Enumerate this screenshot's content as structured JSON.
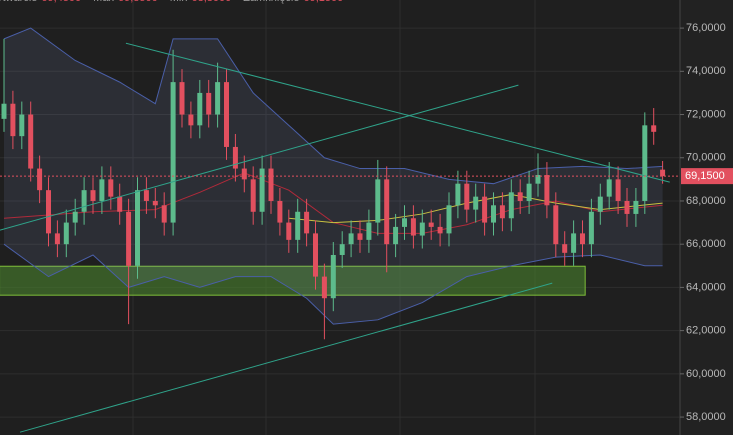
{
  "chart_data": {
    "type": "candlestick",
    "header": [
      {
        "label": "Otwarcie",
        "value": "69,4500"
      },
      {
        "label": "Max",
        "value": "69,8500"
      },
      {
        "label": "Min",
        "value": "68,8000"
      },
      {
        "label": "Zamknięcie",
        "value": "69,1500"
      }
    ],
    "ylim": [
      57.17,
      77.3
    ],
    "yticks": [
      {
        "value": 58,
        "label": "58,0000"
      },
      {
        "value": 60,
        "label": "60,0000"
      },
      {
        "value": 62,
        "label": "62,0000"
      },
      {
        "value": 64,
        "label": "64,0000"
      },
      {
        "value": 66,
        "label": "66,0000"
      },
      {
        "value": 68,
        "label": "68,0000"
      },
      {
        "value": 70,
        "label": "70,0000"
      },
      {
        "value": 72,
        "label": "72,0000"
      },
      {
        "value": 74,
        "label": "74,0000"
      },
      {
        "value": 76,
        "label": "76,0000"
      }
    ],
    "grid": true,
    "up_color": "#5dbb8c",
    "down_color": "#e2505f",
    "open": [
      71.8,
      72.5,
      71.0,
      72.0,
      69.5,
      68.5,
      66.5,
      66.0,
      67.0,
      67.5,
      68.5,
      68.0,
      69.0,
      68.2,
      67.5,
      65.0,
      68.5,
      68.0,
      67.8,
      67.0,
      73.5,
      72.0,
      71.5,
      73.0,
      72.0,
      73.5,
      70.5,
      69.5,
      69.0,
      67.5,
      69.5,
      68.0,
      67.0,
      66.2,
      67.5,
      66.5,
      64.5,
      63.5,
      65.5,
      66.0,
      66.5,
      66.2,
      67.0,
      69.0,
      66.0,
      66.8,
      67.2,
      66.4,
      67.0,
      66.8,
      66.5,
      67.8,
      68.8,
      67.6,
      68.2,
      67.0,
      67.8,
      67.2,
      68.4,
      68.0,
      68.8,
      69.2,
      67.8,
      66.0,
      65.6,
      66.5,
      66.0,
      67.5,
      68.2,
      69.0,
      68.0,
      67.4,
      68.0,
      71.5,
      69.45
    ],
    "high": [
      75.5,
      73.1,
      72.6,
      72.6,
      70.1,
      69.1,
      67.1,
      67.6,
      68.1,
      69.1,
      69.1,
      69.6,
      69.6,
      68.8,
      68.1,
      69.1,
      69.1,
      68.6,
      68.4,
      75.0,
      74.1,
      72.6,
      73.6,
      73.6,
      74.4,
      74.1,
      71.1,
      70.1,
      69.6,
      70.1,
      70.1,
      68.6,
      67.6,
      68.1,
      68.1,
      67.1,
      65.1,
      66.1,
      66.6,
      67.1,
      67.1,
      67.6,
      69.9,
      69.6,
      67.4,
      67.8,
      67.8,
      67.6,
      67.6,
      67.4,
      68.4,
      69.4,
      69.4,
      68.8,
      68.8,
      68.4,
      68.4,
      69.0,
      69.0,
      69.4,
      70.2,
      69.8,
      68.4,
      66.6,
      67.1,
      67.1,
      68.1,
      68.8,
      69.8,
      69.6,
      68.6,
      68.6,
      72.1,
      72.3,
      69.85
    ],
    "low": [
      71.2,
      70.4,
      70.4,
      68.9,
      67.9,
      65.9,
      65.4,
      65.4,
      66.4,
      66.9,
      67.4,
      67.4,
      67.6,
      66.9,
      62.3,
      64.4,
      67.4,
      67.2,
      66.4,
      66.4,
      71.4,
      70.9,
      70.9,
      71.4,
      71.4,
      69.9,
      68.9,
      68.4,
      66.9,
      66.9,
      67.4,
      66.4,
      65.6,
      65.6,
      65.9,
      63.9,
      61.6,
      62.9,
      64.9,
      65.4,
      65.6,
      65.6,
      66.4,
      64.7,
      65.4,
      66.2,
      65.8,
      65.8,
      66.2,
      65.9,
      65.9,
      67.2,
      67.0,
      67.0,
      66.4,
      66.4,
      66.6,
      66.6,
      67.4,
      67.4,
      68.2,
      67.2,
      65.4,
      65.0,
      65.0,
      65.4,
      65.4,
      66.9,
      67.6,
      67.4,
      66.8,
      66.8,
      67.4,
      70.6,
      68.8
    ],
    "close": [
      72.5,
      71.0,
      72.0,
      69.5,
      68.5,
      66.5,
      66.0,
      67.0,
      67.5,
      68.5,
      68.0,
      69.0,
      68.2,
      67.5,
      65.0,
      68.5,
      68.0,
      67.8,
      67.0,
      73.5,
      72.0,
      71.5,
      73.0,
      72.0,
      73.5,
      70.5,
      69.5,
      69.0,
      67.5,
      69.5,
      68.0,
      67.0,
      66.2,
      67.5,
      66.5,
      64.5,
      63.5,
      65.5,
      66.0,
      66.5,
      66.2,
      67.0,
      69.0,
      66.0,
      66.8,
      67.2,
      66.4,
      67.0,
      66.8,
      66.5,
      67.8,
      68.8,
      67.6,
      68.2,
      67.0,
      67.8,
      67.2,
      68.4,
      68.0,
      68.8,
      69.2,
      67.8,
      66.0,
      65.6,
      66.5,
      66.0,
      67.5,
      68.2,
      69.0,
      68.0,
      67.4,
      68.0,
      71.5,
      71.2,
      69.15
    ],
    "band_upper": {
      "color": "#4a5fa8",
      "x": [
        0,
        3,
        8,
        13,
        17,
        19,
        24,
        28,
        32,
        36,
        40,
        45,
        50,
        55,
        60,
        65,
        70,
        74
      ],
      "values": [
        75.5,
        76.0,
        74.5,
        73.5,
        72.5,
        75.5,
        75.5,
        73.0,
        71.5,
        70.0,
        69.5,
        69.5,
        69.0,
        68.8,
        69.5,
        69.6,
        69.5,
        69.6
      ]
    },
    "band_lower": {
      "color": "#4a5fa8",
      "x": [
        0,
        5,
        10,
        14,
        18,
        22,
        26,
        30,
        34,
        37,
        42,
        47,
        52,
        57,
        62,
        67,
        72,
        74
      ],
      "values": [
        66.0,
        64.5,
        65.5,
        64.0,
        64.5,
        64.0,
        64.5,
        64.5,
        63.5,
        62.3,
        62.5,
        63.3,
        64.5,
        65.0,
        65.4,
        65.5,
        65.0,
        65.0
      ]
    },
    "ma_red": {
      "color": "#b02a3a",
      "x": [
        0,
        10,
        17,
        22,
        27,
        32,
        37,
        42,
        47,
        52,
        57,
        62,
        67,
        74
      ],
      "values": [
        67.2,
        67.5,
        67.6,
        68.4,
        69.3,
        68.5,
        67.0,
        66.5,
        66.5,
        66.9,
        67.6,
        68.0,
        67.5,
        67.8
      ]
    },
    "ma_yellow": {
      "color": "#c8c040",
      "x": [
        32,
        37,
        42,
        47,
        52,
        57,
        62,
        67,
        74
      ],
      "values": [
        67.2,
        67.0,
        67.1,
        67.4,
        67.9,
        68.3,
        67.9,
        67.6,
        67.9
      ]
    },
    "trendlines": {
      "color": "#2fa38a",
      "lines": [
        {
          "x": [
            13.7,
            74.8
          ],
          "values": [
            75.3,
            68.87
          ]
        },
        {
          "x": [
            -0.45,
            57.8
          ],
          "values": [
            66.65,
            73.36
          ]
        },
        {
          "x": [
            1.8,
            61.6
          ],
          "values": [
            57.3,
            64.2
          ]
        }
      ]
    },
    "zone": {
      "color": "#4c8a2e",
      "x": [
        -0.5,
        65.3
      ],
      "values": [
        64.98,
        63.64
      ]
    },
    "last_price": {
      "value": 69.15,
      "label": "69,1500",
      "color": "#e2505f"
    }
  }
}
